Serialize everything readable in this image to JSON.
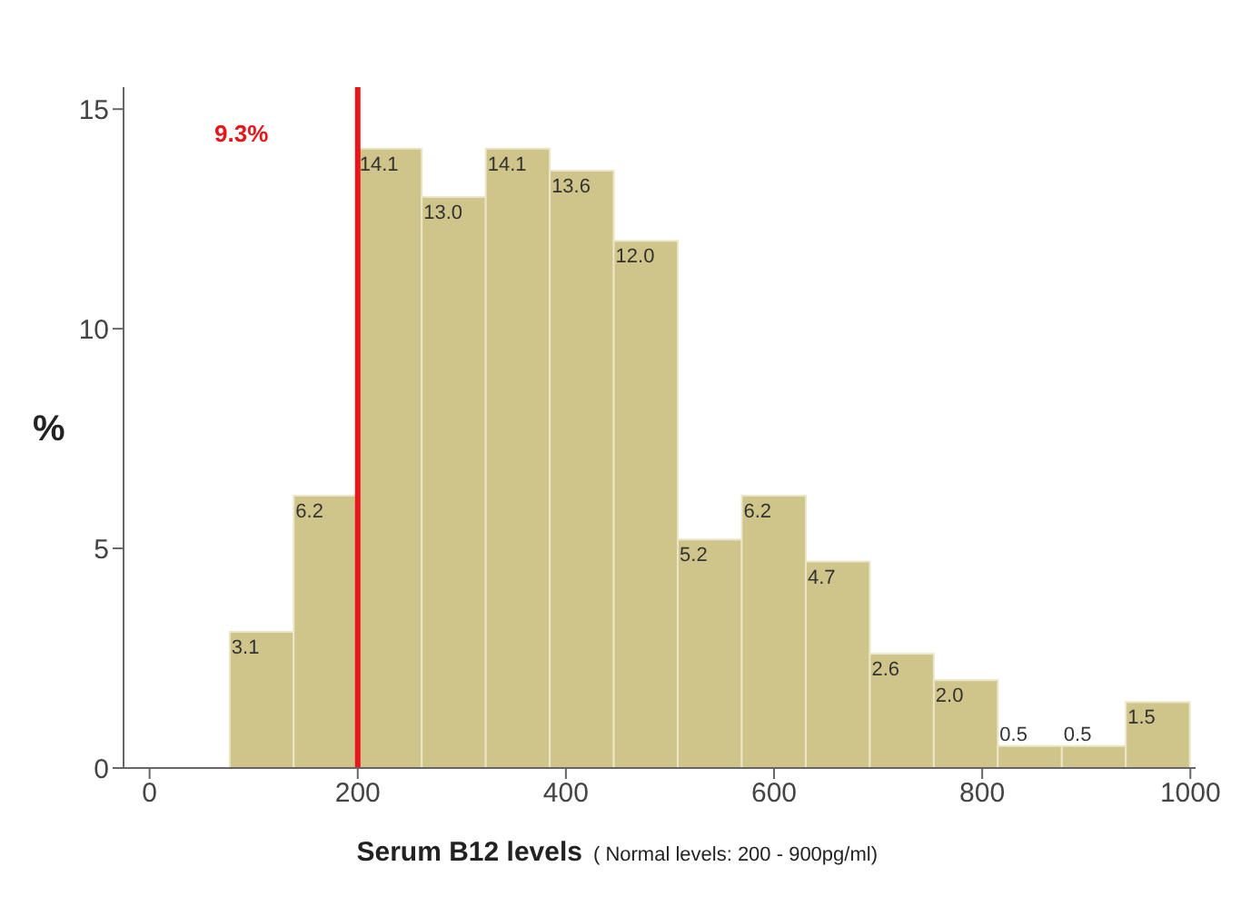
{
  "chart_data": {
    "type": "histogram",
    "xlabel": "Serum B12 levels",
    "ylabel": "%",
    "bins": [
      77,
      138.5,
      200,
      261.5,
      323,
      384.5,
      446,
      507.5,
      569,
      630.5,
      692,
      753.5,
      815,
      876.5,
      938,
      999.5
    ],
    "values": [
      3.1,
      6.2,
      14.1,
      13.0,
      14.1,
      13.6,
      12.0,
      5.2,
      6.2,
      4.7,
      2.6,
      2.0,
      0.5,
      0.5,
      1.5
    ],
    "value_labels": [
      "3.1",
      "6.2",
      "14.1",
      "13.0",
      "14.1",
      "13.6",
      "12.0",
      "5.2",
      "6.2",
      "4.7",
      "2.6",
      "2.0",
      "0.5",
      "0.5",
      "1.5"
    ],
    "color": "#cfc48a",
    "xlim": [
      -25,
      1005
    ],
    "xticks": [
      0,
      200,
      400,
      600,
      800,
      1000
    ],
    "ylim": [
      0,
      15.5
    ],
    "yticks": [
      0,
      5,
      10,
      15
    ],
    "ref_lines": [
      {
        "axis": "x",
        "value": 200,
        "color": "#e8161b"
      }
    ],
    "annotations": [
      "9.3%",
      "( Normal levels: 200 - 900pg/ml)"
    ],
    "grid": false,
    "legend": false
  }
}
